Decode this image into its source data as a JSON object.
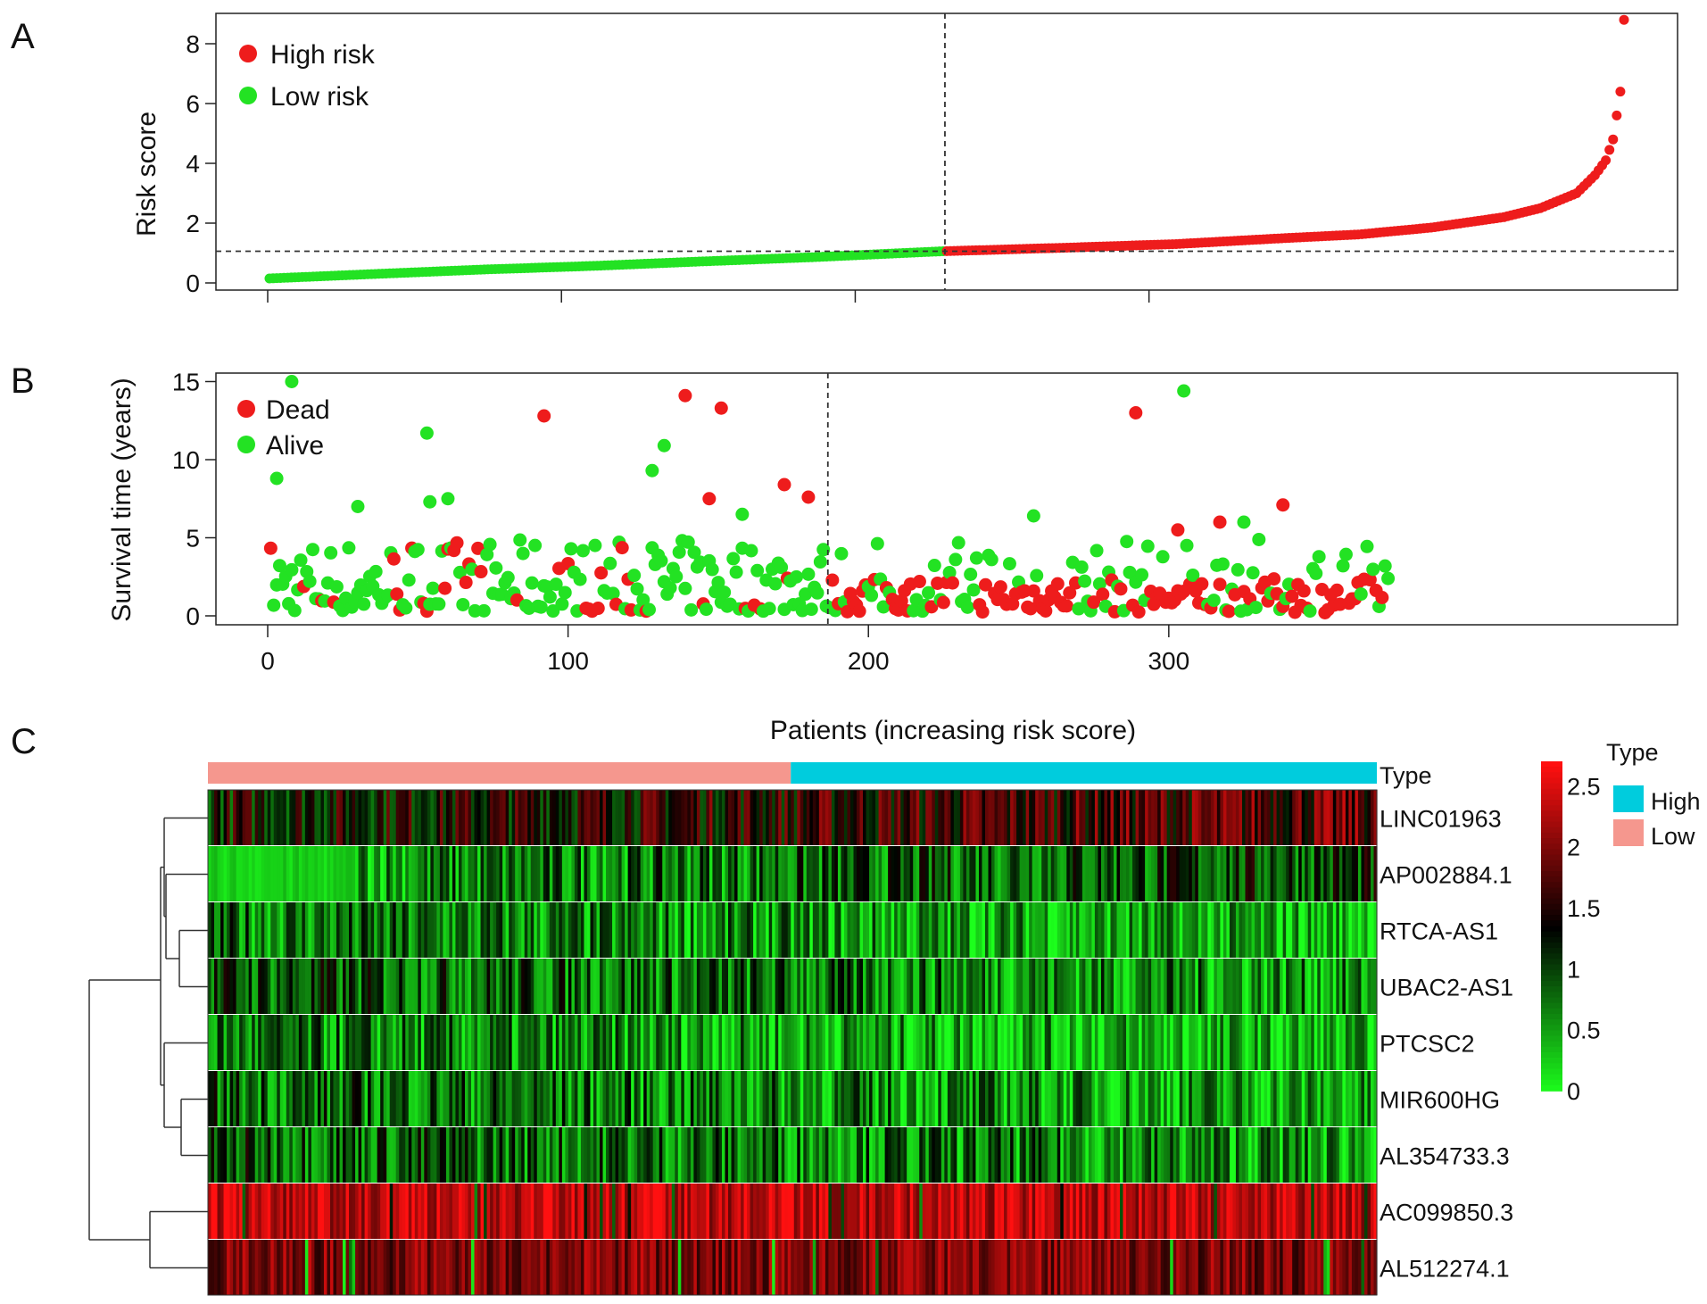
{
  "panels": {
    "a": "A",
    "b": "B",
    "c": "C"
  },
  "colors": {
    "high": "#ee1c1c",
    "low": "#23e223",
    "type_high": "#00ccdd",
    "type_low": "#f5978e",
    "heat_low": "#1cff1c",
    "heat_mid": "#000000",
    "heat_high": "#ff1010"
  },
  "chart_data": [
    {
      "panel": "A",
      "type": "scatter",
      "ylabel": "Risk score",
      "xlim": [
        0,
        373
      ],
      "ylim": [
        0,
        9
      ],
      "yticks": [
        "0",
        "2",
        "4",
        "6",
        "8"
      ],
      "xticks": [
        0,
        100,
        200,
        300
      ],
      "cutoff_index": 186,
      "cutoff_score": 1.06,
      "legend": {
        "position": "top-left",
        "items": [
          "High risk",
          "Low risk"
        ]
      },
      "n_patients": 373,
      "curve_points": [
        [
          1,
          0.15
        ],
        [
          30,
          0.3
        ],
        [
          60,
          0.45
        ],
        [
          90,
          0.57
        ],
        [
          120,
          0.72
        ],
        [
          150,
          0.86
        ],
        [
          186,
          1.06
        ],
        [
          220,
          1.18
        ],
        [
          250,
          1.3
        ],
        [
          280,
          1.5
        ],
        [
          300,
          1.62
        ],
        [
          320,
          1.85
        ],
        [
          340,
          2.2
        ],
        [
          350,
          2.5
        ],
        [
          360,
          3.0
        ],
        [
          365,
          3.6
        ],
        [
          368,
          4.1
        ],
        [
          370,
          4.8
        ],
        [
          371,
          5.6
        ],
        [
          372,
          6.4
        ],
        [
          373,
          8.8
        ]
      ]
    },
    {
      "panel": "B",
      "type": "scatter",
      "ylabel": "Survival time (years)",
      "xlabel": "Patients (increasing risk score)",
      "xlim": [
        0,
        373
      ],
      "ylim": [
        0,
        15
      ],
      "yticks": [
        "0",
        "5",
        "10",
        "15"
      ],
      "xticks": [
        "0",
        "100",
        "200",
        "300"
      ],
      "cutoff_index": 186,
      "legend": {
        "position": "top-left",
        "items": [
          "Dead",
          "Alive"
        ]
      },
      "highlighted_points": [
        {
          "x": 8,
          "y": 15.0,
          "status": "Alive"
        },
        {
          "x": 3,
          "y": 8.8,
          "status": "Alive"
        },
        {
          "x": 53,
          "y": 11.7,
          "status": "Alive"
        },
        {
          "x": 54,
          "y": 7.3,
          "status": "Alive"
        },
        {
          "x": 60,
          "y": 7.5,
          "status": "Alive"
        },
        {
          "x": 30,
          "y": 7.0,
          "status": "Alive"
        },
        {
          "x": 92,
          "y": 12.8,
          "status": "Dead"
        },
        {
          "x": 128,
          "y": 9.3,
          "status": "Alive"
        },
        {
          "x": 132,
          "y": 10.9,
          "status": "Alive"
        },
        {
          "x": 139,
          "y": 14.1,
          "status": "Dead"
        },
        {
          "x": 151,
          "y": 13.3,
          "status": "Dead"
        },
        {
          "x": 147,
          "y": 7.5,
          "status": "Dead"
        },
        {
          "x": 158,
          "y": 6.5,
          "status": "Alive"
        },
        {
          "x": 172,
          "y": 8.4,
          "status": "Dead"
        },
        {
          "x": 180,
          "y": 7.6,
          "status": "Dead"
        },
        {
          "x": 289,
          "y": 13.0,
          "status": "Dead"
        },
        {
          "x": 305,
          "y": 14.4,
          "status": "Alive"
        },
        {
          "x": 255,
          "y": 6.4,
          "status": "Alive"
        },
        {
          "x": 338,
          "y": 7.1,
          "status": "Dead"
        },
        {
          "x": 317,
          "y": 6.0,
          "status": "Dead"
        },
        {
          "x": 325,
          "y": 6.0,
          "status": "Alive"
        },
        {
          "x": 303,
          "y": 5.5,
          "status": "Dead"
        }
      ]
    },
    {
      "panel": "C",
      "type": "heatmap",
      "rows": [
        "LINC01963",
        "AP002884.1",
        "RTCA-AS1",
        "UBAC2-AS1",
        "PTCSC2",
        "MIR600HG",
        "AL354733.3",
        "AC099850.3",
        "AL512274.1"
      ],
      "row_means": [
        1.3,
        0.55,
        0.75,
        0.95,
        0.7,
        0.85,
        0.95,
        2.35,
        2.0
      ],
      "type_bar": {
        "label": "Type",
        "low_count": 186,
        "high_count": 187
      },
      "colorbar": {
        "min": 0,
        "max": 2.7,
        "ticks": [
          "2.5",
          "2",
          "1.5",
          "1",
          "0.5",
          "0"
        ]
      },
      "legend": {
        "title": "Type",
        "items": [
          "High",
          "Low"
        ]
      }
    }
  ]
}
